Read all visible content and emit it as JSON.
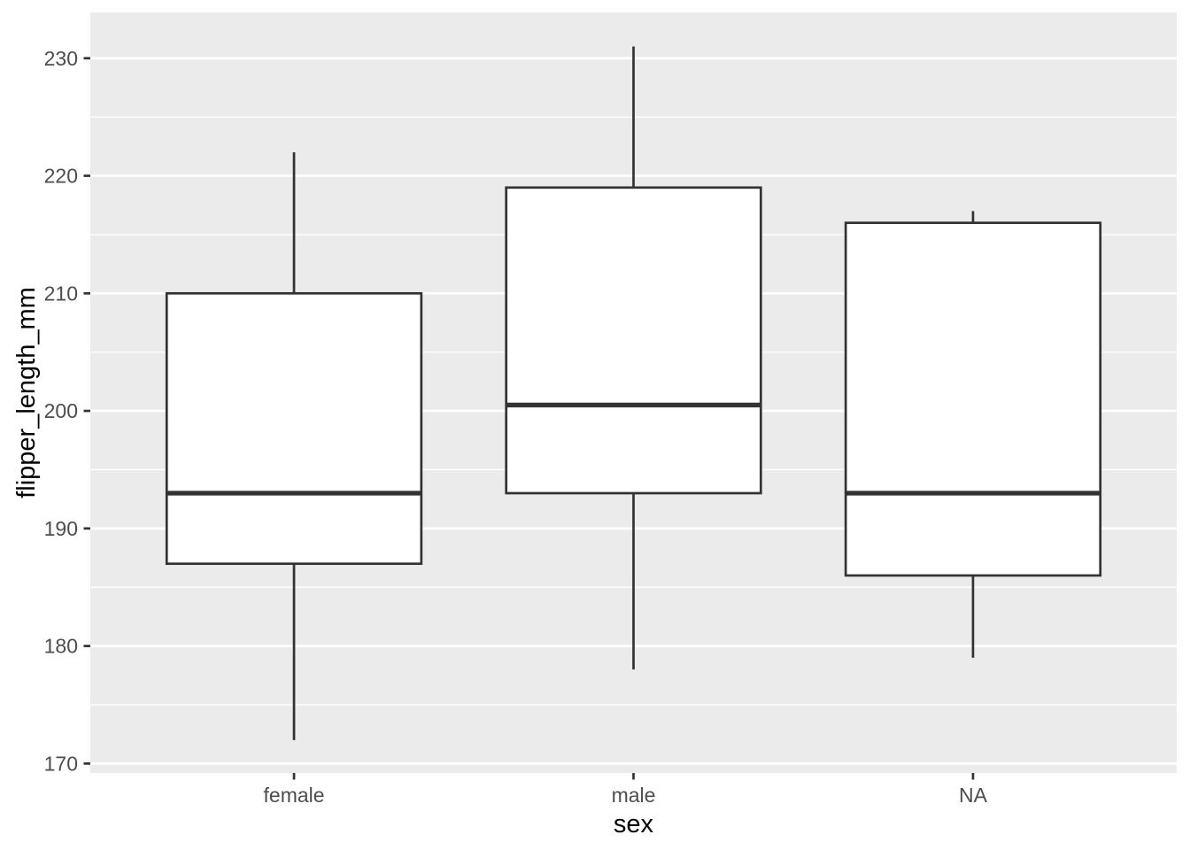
{
  "chart_data": {
    "type": "boxplot",
    "title": "",
    "xlabel": "sex",
    "ylabel": "flipper_length_mm",
    "categories": [
      "female",
      "male",
      "NA"
    ],
    "series": [
      {
        "name": "female",
        "whisker_low": 172,
        "q1": 187,
        "median": 193,
        "q3": 210,
        "whisker_high": 222
      },
      {
        "name": "male",
        "whisker_low": 178,
        "q1": 193,
        "median": 200.5,
        "q3": 219,
        "whisker_high": 231
      },
      {
        "name": "NA",
        "whisker_low": 179,
        "q1": 186,
        "median": 193,
        "q3": 216,
        "whisker_high": 217
      }
    ],
    "y_major_ticks": [
      170,
      180,
      190,
      200,
      210,
      220,
      230
    ],
    "y_minor_ticks": [
      175,
      185,
      195,
      205,
      215,
      225
    ],
    "ylim": [
      169.2,
      233.9
    ],
    "xlim": [
      0.4,
      3.6
    ],
    "x_positions": [
      1,
      2,
      3
    ],
    "box_width": 0.75,
    "legend": "none",
    "grid": "white major and minor horizontal gridlines on gray panel",
    "colors": {
      "panel_background": "#EBEBEB",
      "gridline": "#FFFFFF",
      "box_outline": "#333333",
      "box_fill": "#FFFFFF",
      "median_line": "#333333",
      "whisker": "#333333",
      "tick_mark": "#333333",
      "tick_label": "#4D4D4D",
      "axis_title": "#000000"
    }
  }
}
